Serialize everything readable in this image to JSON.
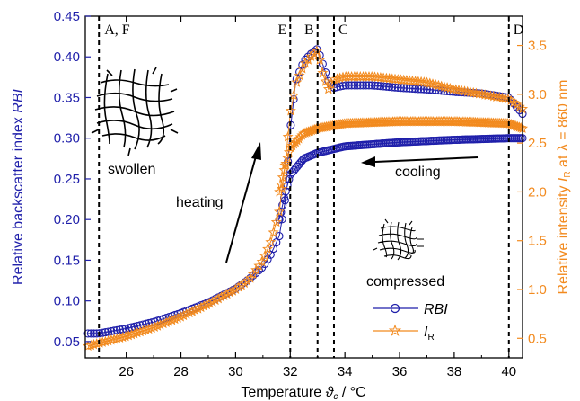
{
  "chart_data": {
    "type": "scatter",
    "x_axis": {
      "label": "Temperature",
      "symbol": "ϑ",
      "symbol_sub": "c",
      "unit": " / °C",
      "range": [
        24.5,
        40.5
      ],
      "ticks": [
        "26",
        "28",
        "30",
        "32",
        "34",
        "36",
        "38",
        "40"
      ],
      "tick_values": [
        26,
        28,
        30,
        32,
        34,
        36,
        38,
        40
      ]
    },
    "y_left": {
      "label_main": "Relative backscatter index ",
      "label_italic": "RBI",
      "color": "#1f1faa",
      "range": [
        0.03,
        0.45
      ],
      "ticks": [
        "0.05",
        "0.10",
        "0.15",
        "0.20",
        "0.25",
        "0.30",
        "0.35",
        "0.40",
        "0.45"
      ],
      "tick_values": [
        0.05,
        0.1,
        0.15,
        0.2,
        0.25,
        0.3,
        0.35,
        0.4,
        0.45
      ]
    },
    "y_right": {
      "label_main": "Relative intensity ",
      "label_italic": "I",
      "label_sub": "R",
      "label_rest": " at λ = 860 nm",
      "color": "#f28a1e",
      "range": [
        0.3,
        3.8
      ],
      "ticks": [
        "0.5",
        "1.0",
        "1.5",
        "2.0",
        "2.5",
        "3.0",
        "3.5"
      ],
      "tick_values": [
        0.5,
        1.0,
        1.5,
        2.0,
        2.5,
        3.0,
        3.5
      ]
    },
    "vertical_lines": [
      {
        "x": 25.0,
        "label": "A, F"
      },
      {
        "x": 32.0,
        "label": "E"
      },
      {
        "x": 33.0,
        "label": "B"
      },
      {
        "x": 33.6,
        "label": "C"
      },
      {
        "x": 40.0,
        "label": "D"
      }
    ],
    "annotations": {
      "swollen": "swollen",
      "heating": "heating",
      "cooling": "cooling",
      "compressed": "compressed"
    },
    "legend": {
      "position": "bottom-right",
      "entries": [
        {
          "label": "RBI",
          "color": "#1f1faa",
          "marker": "circle"
        },
        {
          "label": "I",
          "sub": "R",
          "color": "#f28a1e",
          "marker": "star"
        }
      ]
    },
    "series": [
      {
        "name": "RBI heating",
        "axis": "left",
        "color": "#1f1faa",
        "x": [
          24.6,
          25.0,
          26.0,
          27.0,
          28.0,
          29.0,
          30.0,
          30.5,
          31.0,
          31.3,
          31.6,
          31.8,
          32.0,
          32.2,
          32.5,
          32.8,
          33.0,
          33.2,
          33.4,
          33.6,
          34.0,
          35.0,
          36.0,
          37.0,
          38.0,
          39.0,
          40.0,
          40.5
        ],
        "y": [
          0.06,
          0.06,
          0.066,
          0.074,
          0.085,
          0.098,
          0.115,
          0.127,
          0.142,
          0.158,
          0.18,
          0.22,
          0.31,
          0.37,
          0.395,
          0.405,
          0.41,
          0.39,
          0.37,
          0.362,
          0.365,
          0.365,
          0.362,
          0.36,
          0.357,
          0.355,
          0.35,
          0.33
        ]
      },
      {
        "name": "RBI cooling",
        "axis": "left",
        "color": "#1f1faa",
        "x": [
          40.5,
          40.0,
          38.0,
          36.0,
          34.0,
          33.0,
          32.5,
          32.0,
          31.8,
          31.6
        ],
        "y": [
          0.3,
          0.3,
          0.298,
          0.295,
          0.29,
          0.282,
          0.275,
          0.255,
          0.23,
          0.2
        ]
      },
      {
        "name": "I_R heating",
        "axis": "right",
        "color": "#f28a1e",
        "x": [
          24.6,
          25.0,
          26.0,
          27.0,
          28.0,
          29.0,
          30.0,
          30.5,
          31.0,
          31.3,
          31.6,
          31.8,
          32.0,
          32.2,
          32.5,
          32.8,
          33.0,
          33.2,
          33.4,
          33.6,
          34.0,
          35.0,
          36.0,
          37.0,
          38.0,
          39.0,
          40.0,
          40.5
        ],
        "y": [
          0.42,
          0.45,
          0.52,
          0.61,
          0.72,
          0.85,
          1.0,
          1.1,
          1.3,
          1.5,
          1.8,
          2.25,
          2.8,
          3.1,
          3.3,
          3.4,
          3.45,
          3.2,
          3.05,
          3.15,
          3.18,
          3.18,
          3.15,
          3.12,
          3.05,
          3.0,
          2.95,
          2.85
        ]
      },
      {
        "name": "I_R cooling",
        "axis": "right",
        "color": "#f28a1e",
        "x": [
          40.5,
          40.0,
          38.0,
          36.0,
          34.0,
          33.0,
          32.5,
          32.0,
          31.8,
          31.6
        ],
        "y": [
          2.65,
          2.7,
          2.72,
          2.72,
          2.7,
          2.65,
          2.6,
          2.45,
          2.25,
          2.0
        ]
      }
    ]
  }
}
